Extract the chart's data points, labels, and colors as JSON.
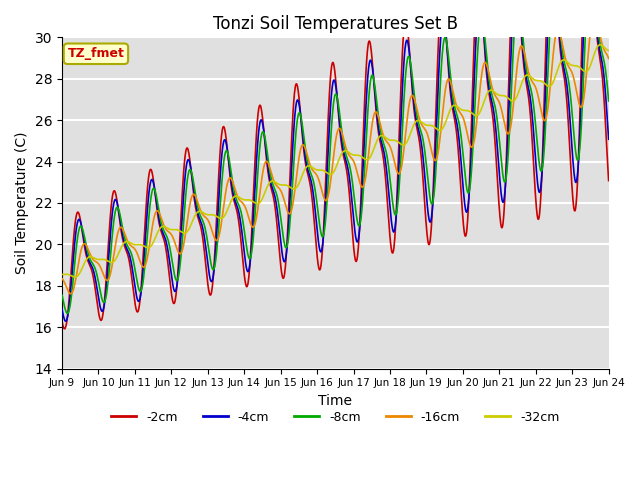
{
  "title": "Tonzi Soil Temperatures Set B",
  "xlabel": "Time",
  "ylabel": "Soil Temperature (C)",
  "ylim": [
    14,
    30
  ],
  "yticks": [
    14,
    16,
    18,
    20,
    22,
    24,
    26,
    28,
    30
  ],
  "x_tick_labels": [
    "Jun 9",
    "Jun 10",
    "Jun 11",
    "Jun 12",
    "Jun 13",
    "Jun 14",
    "Jun 15",
    "Jun 16",
    "Jun 17",
    "Jun 18",
    "Jun 19",
    "Jun 20",
    "Jun 21",
    "Jun 22",
    "Jun 23",
    "Jun 24"
  ],
  "series_colors": [
    "#cc0000",
    "#0000cc",
    "#00aa00",
    "#ee8800",
    "#cccc00"
  ],
  "series_labels": [
    "-2cm",
    "-4cm",
    "-8cm",
    "-16cm",
    "-32cm"
  ],
  "legend_label": "TZ_fmet",
  "legend_bg": "#ffffcc",
  "legend_text_color": "#cc0000",
  "bg_color": "#e0e0e0",
  "grid_color": "#ffffff",
  "linewidth": 1.2,
  "num_points": 1440,
  "days": 15,
  "base_temp": 18.5,
  "trend_rate": 0.72,
  "amplitudes": [
    3.0,
    2.6,
    2.2,
    1.2,
    0.4
  ],
  "amp_growth": [
    1.8,
    1.6,
    1.5,
    1.1,
    0.5
  ],
  "phase_lags_rad": [
    0.0,
    0.2,
    0.5,
    1.1,
    2.0
  ],
  "skew": 0.35
}
